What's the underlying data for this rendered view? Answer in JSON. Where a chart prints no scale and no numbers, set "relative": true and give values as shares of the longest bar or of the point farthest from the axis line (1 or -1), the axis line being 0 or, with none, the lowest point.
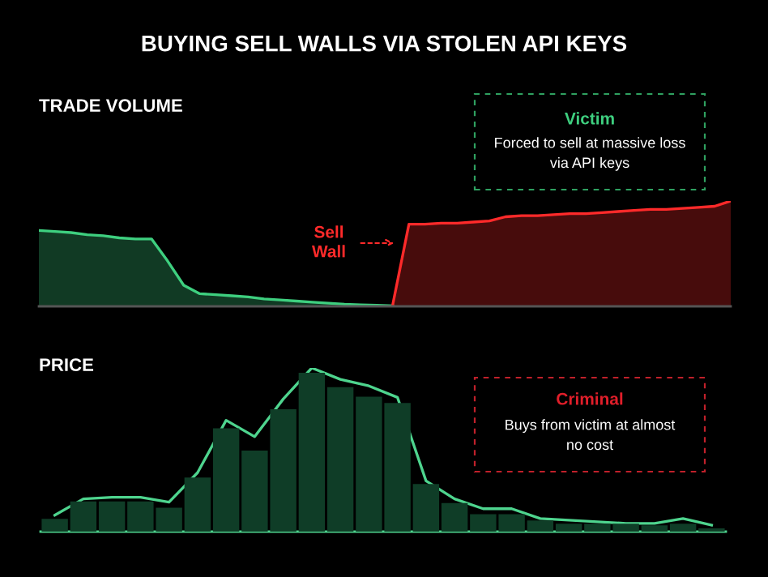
{
  "chart_data": [
    {
      "type": "area",
      "title": "BUYING SELL WALLS VIA STOLEN API KEYS",
      "subtitle": "TRADE VOLUME",
      "relative": true,
      "categories": [
        null,
        null,
        null,
        null,
        null,
        null,
        null,
        null,
        null,
        null,
        null,
        null,
        null,
        null,
        null,
        null,
        null,
        null,
        null,
        null,
        null,
        null,
        null,
        null,
        null,
        null,
        null,
        null,
        null,
        null,
        null,
        null,
        null,
        null,
        null,
        null,
        null,
        null,
        null,
        null,
        null,
        null,
        null,
        null
      ],
      "series": [
        {
          "color": "#3ecf7f",
          "values": [
            0.72,
            0.71,
            0.7,
            0.68,
            0.67,
            0.65,
            0.64,
            0.64,
            0.43,
            0.2,
            0.12,
            0.11,
            0.1,
            0.09,
            0.07,
            0.06,
            0.05,
            0.04,
            0.03,
            0.02,
            0.015,
            0.01,
            0.005,
            null,
            null,
            null,
            null,
            null,
            null,
            null,
            null,
            null,
            null,
            null,
            null,
            null,
            null,
            null,
            null,
            null,
            null,
            null,
            null,
            null
          ]
        },
        {
          "color": "#ff2a2a",
          "values": [
            null,
            null,
            null,
            null,
            null,
            null,
            null,
            null,
            null,
            null,
            null,
            null,
            null,
            null,
            null,
            null,
            null,
            null,
            null,
            null,
            null,
            null,
            0.02,
            0.78,
            0.78,
            0.79,
            0.79,
            0.8,
            0.81,
            0.85,
            0.86,
            0.86,
            0.87,
            0.88,
            0.88,
            0.89,
            0.9,
            0.91,
            0.92,
            0.92,
            0.93,
            0.94,
            0.95,
            1
          ]
        }
      ],
      "annotations": [
        "Victim",
        "Forced to sell at massive loss\nvia API keys",
        "Sell\nWall"
      ]
    },
    {
      "type": "line",
      "relative": true,
      "categories": [
        null,
        null,
        null,
        null,
        null,
        null,
        null,
        null,
        null,
        null,
        null,
        null,
        null,
        null,
        null,
        null,
        null,
        null,
        null,
        null,
        null,
        null,
        null,
        null
      ],
      "series": [
        {
          "color": "#4ed48e",
          "values": [
            0.1,
            0.2,
            0.21,
            0.21,
            0.18,
            0.36,
            0.68,
            0.58,
            0.81,
            1,
            0.93,
            0.89,
            0.82,
            0.31,
            0.2,
            0.14,
            0.14,
            0.08,
            0.07,
            0.06,
            0.05,
            0.05,
            0.08,
            0.04
          ]
        }
      ]
    },
    {
      "type": "bar",
      "title": "PRICE",
      "relative": true,
      "categories": [
        null,
        null,
        null,
        null,
        null,
        null,
        null,
        null,
        null,
        null,
        null,
        null,
        null,
        null,
        null,
        null,
        null,
        null,
        null,
        null,
        null,
        null,
        null,
        null
      ],
      "series": [
        {
          "color": "#0f3d27",
          "values": [
            0.08,
            0.19,
            0.19,
            0.19,
            0.15,
            0.34,
            0.65,
            0.51,
            0.77,
            1,
            0.91,
            0.85,
            0.81,
            0.3,
            0.18,
            0.11,
            0.11,
            0.07,
            0.05,
            0.05,
            0.05,
            0.04,
            0.05,
            0.02
          ]
        }
      ],
      "annotations": [
        "Criminal",
        "Buys from victim at almost\nno cost"
      ]
    }
  ]
}
